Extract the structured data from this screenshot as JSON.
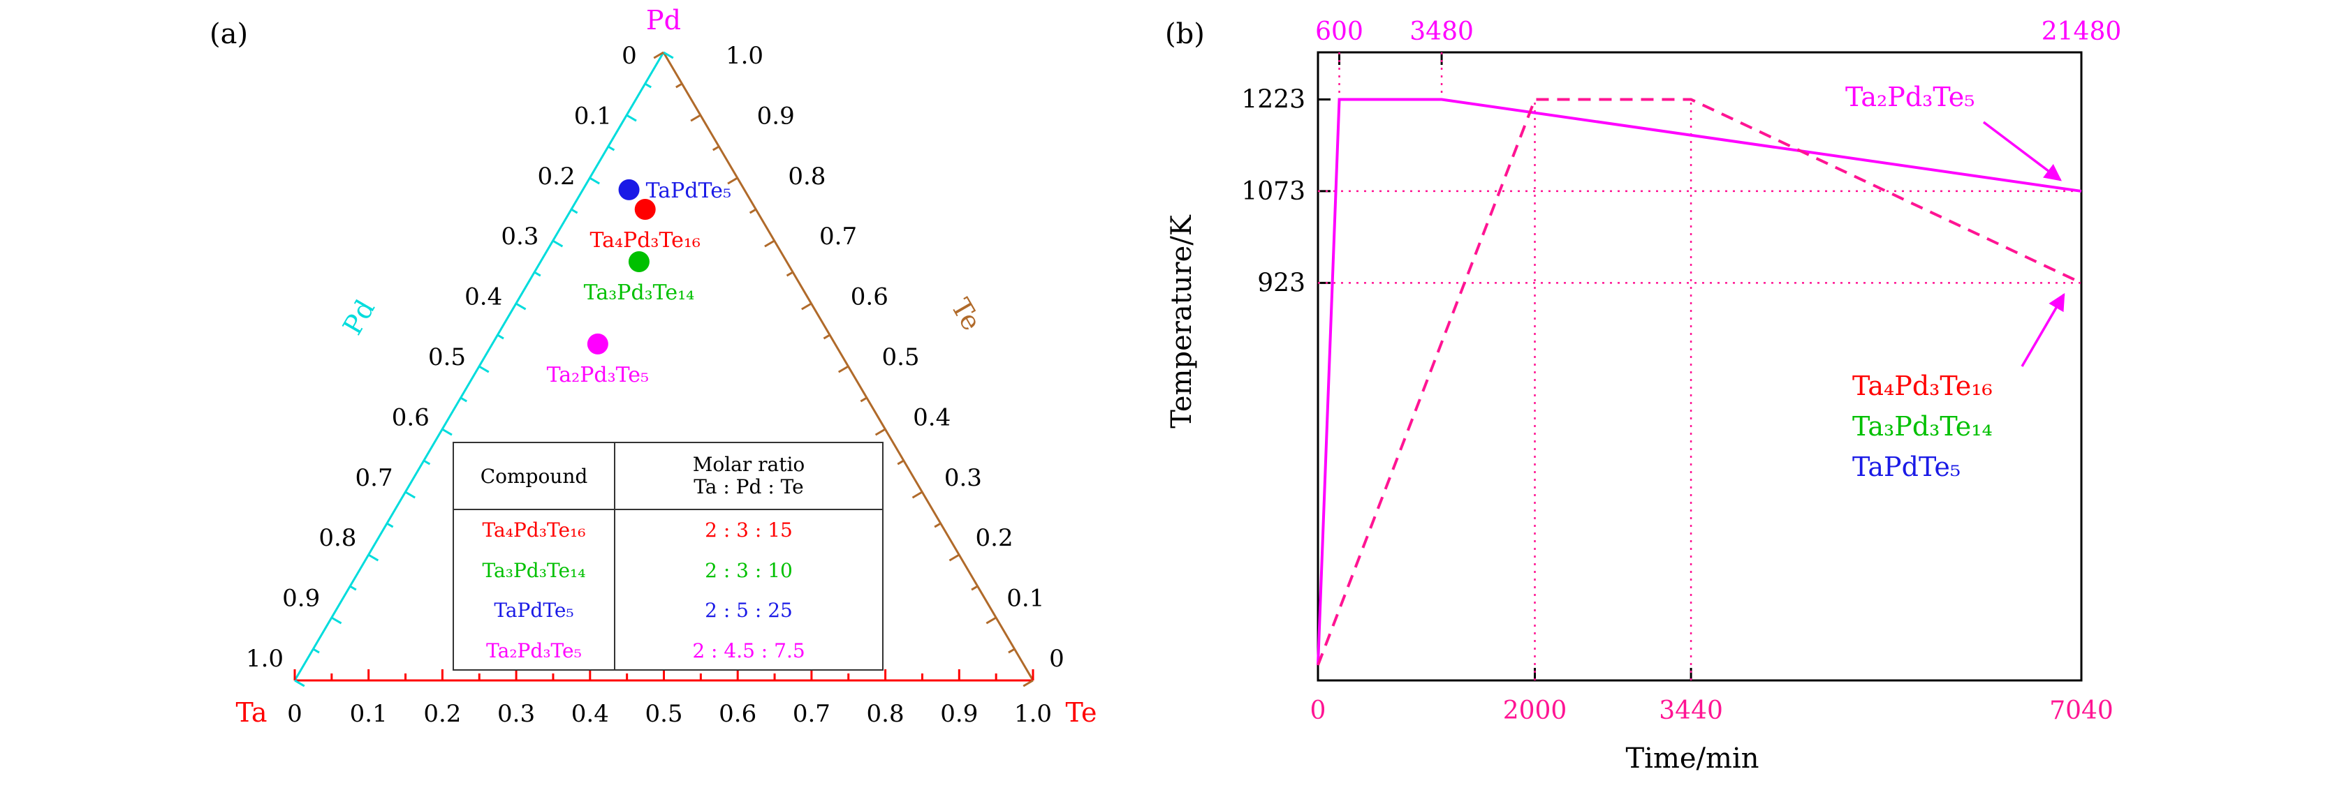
{
  "figure": {
    "panel_a_label": "(a)",
    "panel_b_label": "(b)"
  },
  "colors": {
    "magenta": "#ff00ff",
    "deep_pink": "#ff1493",
    "red": "#ff0000",
    "green": "#00c000",
    "blue": "#1a1ae6",
    "cyan": "#00dcdc",
    "brown": "#b06a2a",
    "black": "#000000"
  },
  "chart_data": [
    {
      "type": "scatter",
      "subtype": "ternary",
      "corner_labels": {
        "top": "Pd",
        "bottom_left": "Ta",
        "bottom_right": "Te"
      },
      "axes": {
        "left": {
          "title": "Pd",
          "color": "#00dcdc",
          "tick_labels": [
            "0",
            "0.1",
            "0.2",
            "0.3",
            "0.4",
            "0.5",
            "0.6",
            "0.7",
            "0.8",
            "0.9",
            "1.0"
          ]
        },
        "right": {
          "title": "Te",
          "color": "#b06a2a",
          "tick_labels": [
            "1.0",
            "0.9",
            "0.8",
            "0.7",
            "0.6",
            "0.5",
            "0.4",
            "0.3",
            "0.2",
            "0.1",
            "0"
          ]
        },
        "bottom": {
          "title_left": "Ta",
          "title_right": "Te",
          "color": "#ff0000",
          "tick_labels": [
            "0",
            "0.1",
            "0.2",
            "0.3",
            "0.4",
            "0.5",
            "0.6",
            "0.7",
            "0.8",
            "0.9",
            "1.0"
          ]
        }
      },
      "points": [
        {
          "label": "TaPdTe₅",
          "color": "#1a1ae6",
          "ta_pd_te": [
            2,
            5,
            25
          ],
          "label_side": "right"
        },
        {
          "label": "Ta₄Pd₃Te₁₆",
          "color": "#ff0000",
          "ta_pd_te": [
            2,
            3,
            15
          ],
          "label_side": "below"
        },
        {
          "label": "Ta₃Pd₃Te₁₄",
          "color": "#00c000",
          "ta_pd_te": [
            2,
            3,
            10
          ],
          "label_side": "below"
        },
        {
          "label": "Ta₂Pd₃Te₅",
          "color": "#ff00ff",
          "ta_pd_te": [
            2,
            4.5,
            7.5
          ],
          "label_side": "below"
        }
      ]
    },
    {
      "type": "line",
      "xlabel": "Time/min",
      "ylabel": "Temperature/K",
      "ylim": [
        273,
        1300
      ],
      "y_ticks": [
        1223,
        1073,
        923
      ],
      "bottom_axis": {
        "lim": [
          0,
          7040
        ],
        "ticks": [
          0,
          2000,
          3440,
          7040
        ],
        "color": "#ff1493"
      },
      "top_axis": {
        "lim": [
          0,
          21480
        ],
        "ticks": [
          600,
          3480,
          21480
        ],
        "color": "#ff00ff"
      },
      "series": [
        {
          "name": "Ta₂Pd₃Te₅",
          "style": "solid",
          "x_axis": "top",
          "color": "#ff00ff",
          "x": [
            0,
            600,
            3480,
            21480
          ],
          "y": [
            298,
            1223,
            1223,
            1073
          ]
        },
        {
          "name": "Ta₄Pd₃Te₁₆, Ta₃Pd₃Te₁₄, TaPdTe₅",
          "style": "dashed",
          "x_axis": "bottom",
          "color": "#ff1493",
          "x": [
            0,
            2000,
            3440,
            7040
          ],
          "y": [
            298,
            1223,
            1223,
            923
          ]
        }
      ],
      "guides": {
        "color": "#ff1493",
        "plateau_temp": 1223,
        "horizontal_temps": [
          1073,
          923
        ],
        "vertical_top_times": [
          600,
          3480
        ],
        "vertical_bottom_times": [
          2000,
          3440
        ]
      },
      "annotations": [
        {
          "text": "Ta₂Pd₃Te₅",
          "color": "#ff00ff"
        },
        {
          "text": "Ta₄Pd₃Te₁₆",
          "color": "#ff0000"
        },
        {
          "text": "Ta₃Pd₃Te₁₄",
          "color": "#00c000"
        },
        {
          "text": "TaPdTe₅",
          "color": "#1a1ae6"
        }
      ]
    }
  ],
  "table": {
    "header_col1": "Compound",
    "header_col2_line1": "Molar ratio",
    "header_col2_line2": "Ta : Pd : Te",
    "rows": [
      {
        "compound": "Ta₄Pd₃Te₁₆",
        "ratio": "2 : 3 : 15",
        "color": "#ff0000"
      },
      {
        "compound": "Ta₃Pd₃Te₁₄",
        "ratio": "2 : 3 : 10",
        "color": "#00c000"
      },
      {
        "compound": "TaPdTe₅",
        "ratio": "2 : 5 : 25",
        "color": "#1a1ae6"
      },
      {
        "compound": "Ta₂Pd₃Te₅",
        "ratio": "2 : 4.5 : 7.5",
        "color": "#ff00ff"
      }
    ]
  }
}
